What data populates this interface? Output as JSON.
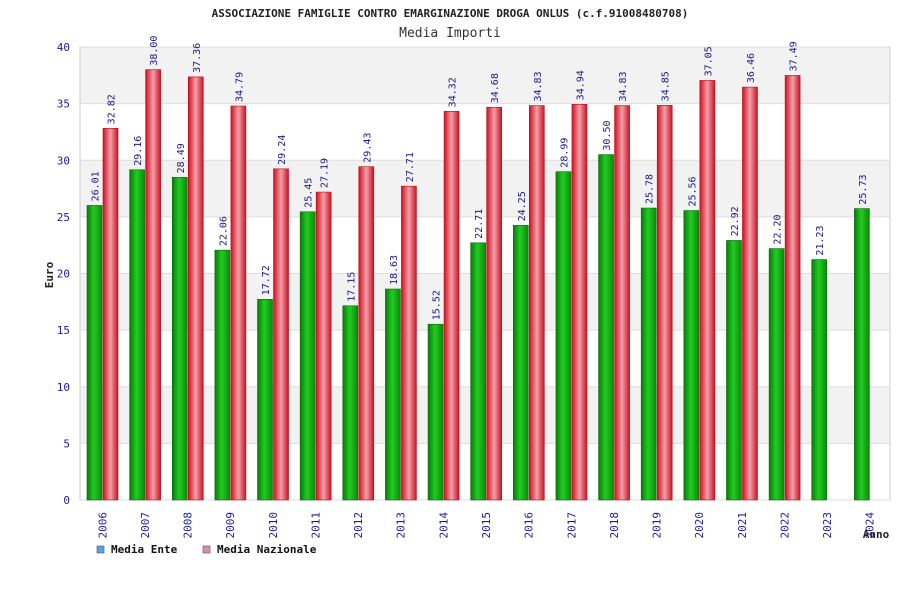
{
  "chart_data": {
    "type": "bar",
    "title": "ASSOCIAZIONE FAMIGLIE CONTRO EMARGINAZIONE DROGA ONLUS (c.f.91008480708)",
    "subtitle": "Media Importi",
    "xlabel": "Anno",
    "ylabel": "Euro",
    "ylim": [
      0,
      40
    ],
    "yticks": [
      0,
      5,
      10,
      15,
      20,
      25,
      30,
      35,
      40
    ],
    "categories": [
      "2006",
      "2007",
      "2008",
      "2009",
      "2010",
      "2011",
      "2012",
      "2013",
      "2014",
      "2015",
      "2016",
      "2017",
      "2018",
      "2019",
      "2020",
      "2021",
      "2022",
      "2023",
      "2024"
    ],
    "series": [
      {
        "name": "Media Ente",
        "color": "#1aa81a",
        "values": [
          26.01,
          29.16,
          28.49,
          22.06,
          17.72,
          25.45,
          17.15,
          18.63,
          15.52,
          22.71,
          24.25,
          28.99,
          30.5,
          25.78,
          25.56,
          22.92,
          22.2,
          21.23,
          25.73
        ],
        "labels": [
          "26.01",
          "29.16",
          "28.49",
          "22.06",
          "17.72",
          "25.45",
          "17.15",
          "18.63",
          "15.52",
          "22.71",
          "24.25",
          "28.99",
          "30.50",
          "25.78",
          "25.56",
          "22.92",
          "22.20",
          "21.23",
          "25.73"
        ]
      },
      {
        "name": "Media Nazionale",
        "color": "#e02030",
        "values": [
          32.82,
          38.0,
          37.36,
          34.79,
          29.24,
          27.19,
          29.43,
          27.71,
          34.32,
          34.68,
          34.83,
          34.94,
          34.83,
          34.85,
          37.05,
          36.46,
          37.49,
          null,
          null
        ],
        "labels": [
          "32.82",
          "38.00",
          "37.36",
          "34.79",
          "29.24",
          "27.19",
          "29.43",
          "27.71",
          "34.32",
          "34.68",
          "34.83",
          "34.94",
          "34.83",
          "34.85",
          "37.05",
          "36.46",
          "37.49",
          null,
          null
        ]
      }
    ],
    "legend": [
      {
        "name": "Media Ente",
        "color": "#5aa0e6"
      },
      {
        "name": "Media Nazionale",
        "color": "#e08ab0"
      }
    ],
    "legend_position": "bottom-left",
    "grid": true
  }
}
